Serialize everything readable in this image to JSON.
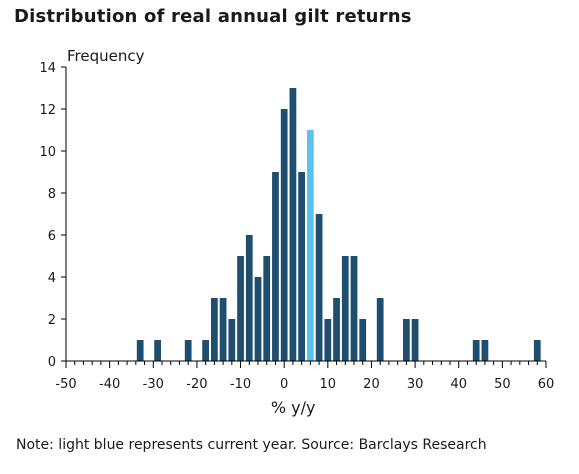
{
  "title": "Distribution of real annual gilt returns",
  "note": "Note: light blue represents current year. Source: Barclays Research",
  "chart_data": {
    "type": "bar",
    "title": "Distribution of real annual gilt returns",
    "xlabel": "% y/y",
    "ylabel": "Frequency",
    "xlim": [
      -50,
      60
    ],
    "ylim": [
      0,
      14
    ],
    "xticks": [
      -50,
      -40,
      -30,
      -20,
      -10,
      0,
      10,
      20,
      30,
      40,
      50,
      60
    ],
    "yticks": [
      0,
      2,
      4,
      6,
      8,
      10,
      12,
      14
    ],
    "grid": false,
    "bar_color": "#1f4e6e",
    "highlight_color": "#5bc2ee",
    "bars": [
      {
        "x": -33,
        "y": 1
      },
      {
        "x": -29,
        "y": 1
      },
      {
        "x": -22,
        "y": 1
      },
      {
        "x": -18,
        "y": 1
      },
      {
        "x": -16,
        "y": 3
      },
      {
        "x": -14,
        "y": 3
      },
      {
        "x": -12,
        "y": 2
      },
      {
        "x": -10,
        "y": 5
      },
      {
        "x": -8,
        "y": 6
      },
      {
        "x": -6,
        "y": 4
      },
      {
        "x": -4,
        "y": 5
      },
      {
        "x": -2,
        "y": 9
      },
      {
        "x": 0,
        "y": 12
      },
      {
        "x": 2,
        "y": 13
      },
      {
        "x": 4,
        "y": 9
      },
      {
        "x": 6,
        "y": 11,
        "highlight": true
      },
      {
        "x": 8,
        "y": 7
      },
      {
        "x": 10,
        "y": 2
      },
      {
        "x": 12,
        "y": 3
      },
      {
        "x": 14,
        "y": 5
      },
      {
        "x": 16,
        "y": 5
      },
      {
        "x": 18,
        "y": 2
      },
      {
        "x": 22,
        "y": 3
      },
      {
        "x": 28,
        "y": 2
      },
      {
        "x": 30,
        "y": 2
      },
      {
        "x": 44,
        "y": 1
      },
      {
        "x": 46,
        "y": 1
      },
      {
        "x": 58,
        "y": 1
      }
    ]
  }
}
